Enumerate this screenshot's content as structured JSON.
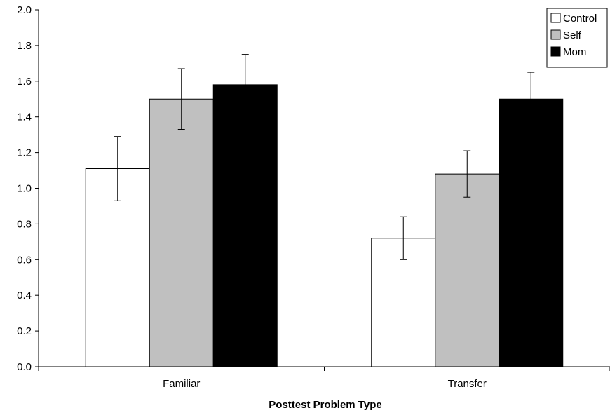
{
  "chart_data": {
    "type": "bar",
    "title": "",
    "xlabel": "Posttest Problem Type",
    "ylabel": "",
    "categories": [
      "Familiar",
      "Transfer"
    ],
    "ylim": [
      0,
      2.0
    ],
    "yticks": [
      "0.0",
      "0.2",
      "0.4",
      "0.6",
      "0.8",
      "1.0",
      "1.2",
      "1.4",
      "1.6",
      "1.8",
      "2.0"
    ],
    "grid": false,
    "legend_position": "top-right",
    "series": [
      {
        "name": "Control",
        "color": "#ffffff",
        "values": [
          1.11,
          0.72
        ],
        "error_low": [
          0.93,
          0.6
        ],
        "error_high": [
          1.29,
          0.84
        ]
      },
      {
        "name": "Self",
        "color": "#c0c0c0",
        "values": [
          1.5,
          1.08
        ],
        "error_low": [
          1.33,
          0.95
        ],
        "error_high": [
          1.67,
          1.21
        ]
      },
      {
        "name": "Mom",
        "color": "#000000",
        "values": [
          1.58,
          1.5
        ],
        "error_low": [
          1.41,
          1.35
        ],
        "error_high": [
          1.75,
          1.65
        ]
      }
    ]
  }
}
